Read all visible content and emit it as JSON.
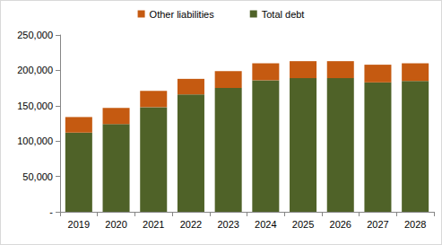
{
  "chart_data": {
    "type": "bar",
    "stacked": true,
    "legend": "top",
    "grid": false,
    "categories": [
      "2019",
      "2020",
      "2021",
      "2022",
      "2023",
      "2024",
      "2025",
      "2026",
      "2027",
      "2028"
    ],
    "series": [
      {
        "name": "Total debt",
        "color": "#4f6228",
        "values": [
          112000,
          124000,
          148000,
          166000,
          175000,
          186000,
          189000,
          189000,
          183000,
          185000
        ]
      },
      {
        "name": "Other liabilities",
        "color": "#c55a11",
        "values": [
          22000,
          23000,
          23000,
          22000,
          24000,
          24000,
          24000,
          24000,
          25000,
          25000
        ]
      }
    ],
    "ylim": [
      0,
      250000
    ],
    "yticks": [
      {
        "value": 0,
        "label": "-"
      },
      {
        "value": 50000,
        "label": "50,000"
      },
      {
        "value": 100000,
        "label": "100,000"
      },
      {
        "value": 150000,
        "label": "150,000"
      },
      {
        "value": 200000,
        "label": "200,000"
      },
      {
        "value": 250000,
        "label": "250,000"
      }
    ]
  }
}
